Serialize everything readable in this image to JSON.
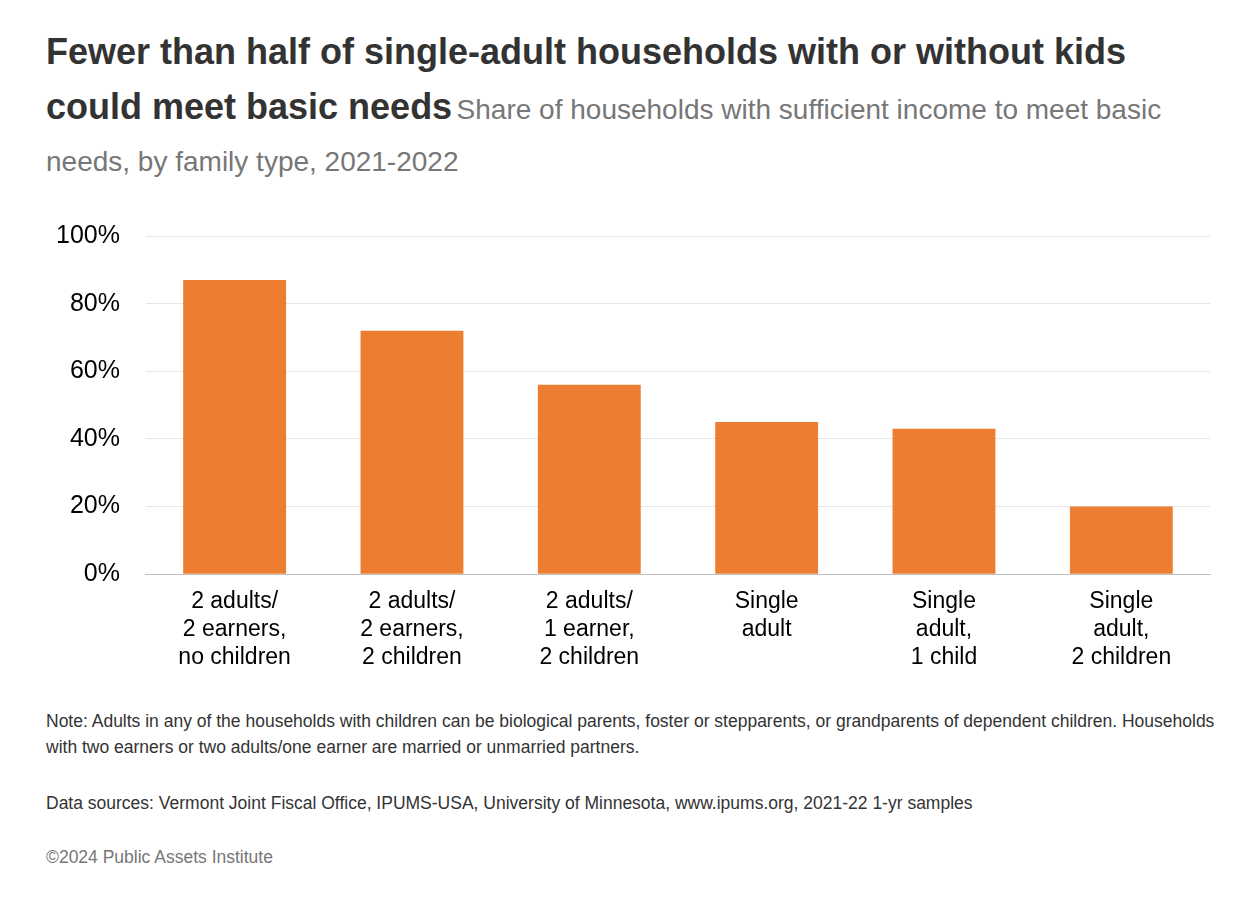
{
  "chart_data": {
    "type": "bar",
    "title": "Fewer than half of single-adult households with or without kids could meet basic needs",
    "subtitle": "Share of households with sufficient income to meet basic needs, by family type, 2021-2022",
    "categories": [
      [
        "2 adults/",
        "2 earners,",
        "no children"
      ],
      [
        "2 adults/",
        "2 earners,",
        "2 children"
      ],
      [
        "2 adults/",
        "1 earner,",
        "2 children"
      ],
      [
        "Single",
        "adult"
      ],
      [
        "Single",
        "adult,",
        "1 child"
      ],
      [
        "Single",
        "adult,",
        "2 children"
      ]
    ],
    "values": [
      87,
      72,
      56,
      45,
      43,
      20
    ],
    "color": "#ed7d31",
    "ylim": [
      0,
      100
    ],
    "yticks": [
      {
        "value": 0,
        "label": "0%"
      },
      {
        "value": 20,
        "label": "20%"
      },
      {
        "value": 40,
        "label": "40%"
      },
      {
        "value": 60,
        "label": "60%"
      },
      {
        "value": 80,
        "label": "80%"
      },
      {
        "value": 100,
        "label": "100%"
      }
    ],
    "grid": true,
    "note": "Note: Adults in any of the households with children can be biological parents, foster or stepparents, or grandparents of dependent children. Households with two earners or two adults/one earner are married or unmarried partners.",
    "source": "Data sources: Vermont Joint Fiscal Office, IPUMS-USA, University of Minnesota, www.ipums.org, 2021-22 1-yr samples",
    "copyright": "©2024 Public Assets Institute"
  }
}
